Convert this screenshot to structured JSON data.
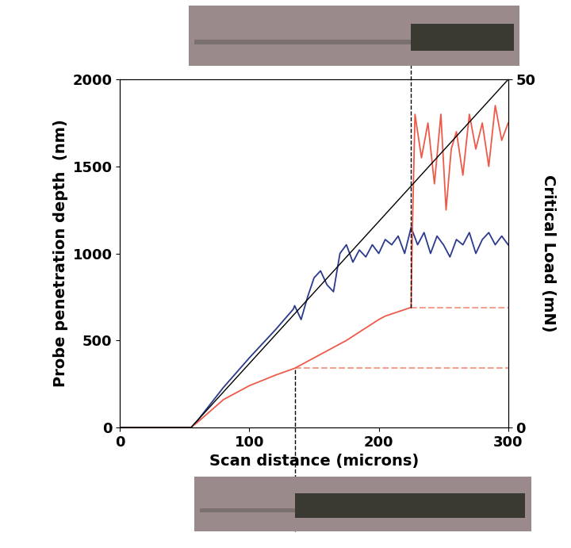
{
  "chart_data": {
    "type": "line",
    "x_label": "Scan distance (microns)",
    "y_label": "Probe penetration depth  (nm)",
    "y2_label": "Critical Load (mN)",
    "xlim": [
      0,
      300
    ],
    "xticks": [
      0,
      100,
      200,
      300
    ],
    "ylim": [
      0,
      2000
    ],
    "yticks": [
      0,
      500,
      1000,
      1500,
      2000
    ],
    "y2lim": [
      0,
      50
    ],
    "y2ticks": [
      0,
      50
    ],
    "grid": false,
    "series": [
      {
        "color": "#000000",
        "axis": "y2",
        "x": [
          0,
          55,
          300
        ],
        "values": [
          0,
          0,
          50
        ]
      },
      {
        "color": "#2b3a8c",
        "x": [
          0,
          55,
          60,
          80,
          100,
          120,
          134,
          135,
          140,
          145,
          150,
          155,
          160,
          165,
          170,
          175,
          180,
          185,
          190,
          195,
          200,
          205,
          210,
          215,
          220,
          225,
          230,
          235,
          240,
          245,
          250,
          255,
          260,
          265,
          270,
          275,
          280,
          285,
          290,
          295,
          300
        ],
        "values": [
          0,
          0,
          40,
          230,
          400,
          560,
          680,
          700,
          620,
          750,
          860,
          900,
          820,
          780,
          1000,
          1050,
          950,
          1020,
          980,
          1050,
          1000,
          1080,
          1050,
          1100,
          1000,
          1150,
          1050,
          1120,
          1000,
          1100,
          1050,
          980,
          1080,
          1050,
          1120,
          1000,
          1080,
          1120,
          1050,
          1100,
          1050
        ]
      },
      {
        "color": "#ee5a4a",
        "x": [
          0,
          55,
          60,
          80,
          100,
          120,
          135,
          150,
          175,
          200,
          205,
          225,
          226,
          228,
          233,
          238,
          243,
          248,
          252,
          256,
          260,
          265,
          270,
          275,
          280,
          285,
          290,
          295,
          300
        ],
        "values": [
          0,
          0,
          30,
          160,
          240,
          300,
          340,
          400,
          500,
          620,
          640,
          690,
          1150,
          1800,
          1550,
          1750,
          1400,
          1800,
          1250,
          1600,
          1700,
          1450,
          1800,
          1600,
          1750,
          1500,
          1850,
          1650,
          1750
        ]
      }
    ],
    "vlines": [
      135,
      225
    ],
    "hlines": [
      {
        "y": 340,
        "x": [
          135,
          300
        ]
      },
      {
        "y": 690,
        "x": [
          225,
          300
        ]
      }
    ]
  }
}
